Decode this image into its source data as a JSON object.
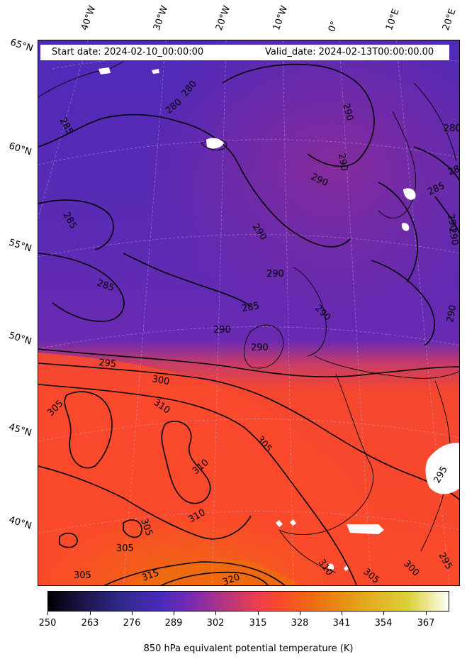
{
  "header": {
    "start_date": "Start date: 2024-02-10_00:00:00",
    "valid_date": "Valid_date: 2024-02-13T00:00:00.00"
  },
  "longitude_labels": [
    "40°W",
    "30°W",
    "20°W",
    "10°W",
    "0°",
    "10°E",
    "20°E"
  ],
  "latitude_labels": [
    "65°N",
    "60°N",
    "55°N",
    "50°N",
    "45°N",
    "40°N"
  ],
  "contour_labels": [
    "280",
    "285",
    "280",
    "285",
    "290",
    "290",
    "290",
    "290",
    "285",
    "285",
    "290",
    "290",
    "290",
    "285",
    "290",
    "290",
    "280",
    "285",
    "290",
    "295",
    "300",
    "305",
    "310",
    "305",
    "310",
    "310",
    "305",
    "305",
    "305",
    "315",
    "320",
    "310",
    "305",
    "300",
    "295",
    "295",
    "290"
  ],
  "colorbar": {
    "title": "850 hPa equivalent potential temperature (K)",
    "ticks": [
      "250",
      "263",
      "276",
      "289",
      "302",
      "315",
      "328",
      "341",
      "354",
      "367"
    ],
    "colormap": "CMRmap-like (black-blue-purple-red-orange-yellow-white)"
  },
  "colors": {
    "cold_region": "#4a2bbd",
    "mid_region": "#7a2b9c",
    "warm_region": "#fa4a2c",
    "hot_region": "#ee6b10",
    "contour": "#000000"
  }
}
